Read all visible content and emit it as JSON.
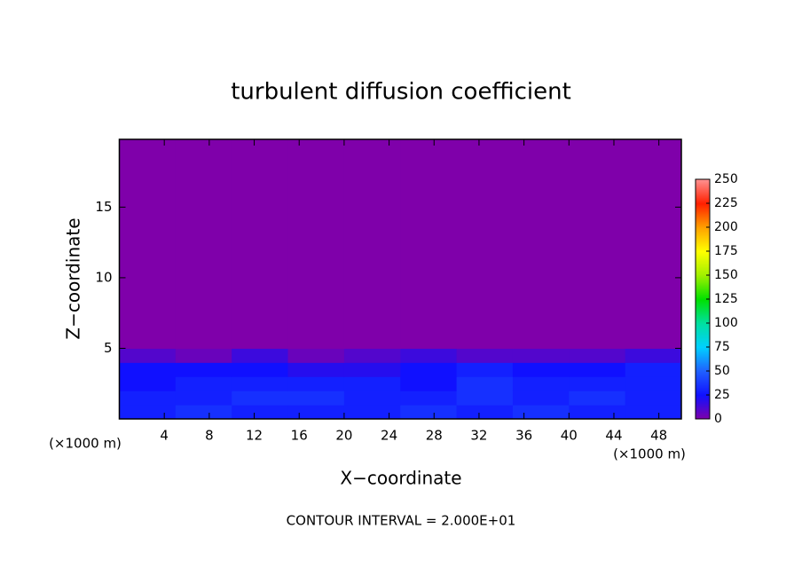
{
  "chart_data": {
    "type": "heatmap",
    "title": "turbulent diffusion coefficient",
    "x_label": "X−coordinate",
    "y_label": "Z−coordinate",
    "x_unit": "(×1000 m)",
    "footer": "CONTOUR INTERVAL = 2.000E+01",
    "xlim": [
      0,
      50
    ],
    "ylim": [
      0,
      19.8
    ],
    "xticks": [
      4,
      8,
      12,
      16,
      20,
      24,
      28,
      32,
      36,
      40,
      44,
      48
    ],
    "yticks": [
      5,
      10,
      15
    ],
    "x_edges": [
      0,
      5,
      10,
      15,
      20,
      25,
      30,
      35,
      40,
      45,
      50
    ],
    "y_edges": [
      0,
      1,
      2,
      3,
      4,
      5,
      19.8
    ],
    "values": [
      [
        30,
        35,
        30,
        30,
        30,
        35,
        30,
        35,
        30,
        30
      ],
      [
        30,
        30,
        35,
        35,
        30,
        30,
        35,
        30,
        35,
        30
      ],
      [
        25,
        30,
        30,
        30,
        30,
        25,
        35,
        30,
        30,
        30
      ],
      [
        25,
        25,
        25,
        20,
        20,
        25,
        30,
        25,
        25,
        30
      ],
      [
        10,
        5,
        15,
        5,
        10,
        15,
        10,
        10,
        10,
        15
      ],
      [
        0,
        0,
        0,
        0,
        0,
        0,
        0,
        0,
        0,
        0
      ]
    ],
    "clim": [
      0,
      250
    ],
    "cticks": [
      0,
      25,
      50,
      75,
      100,
      125,
      150,
      175,
      200,
      225,
      250
    ],
    "colormap": [
      "#7f00aa",
      "#1010ff",
      "#2060ff",
      "#00d0ff",
      "#00e0a0",
      "#00e000",
      "#a0f000",
      "#ffff00",
      "#ffa000",
      "#ff2000",
      "#ff9090"
    ]
  }
}
